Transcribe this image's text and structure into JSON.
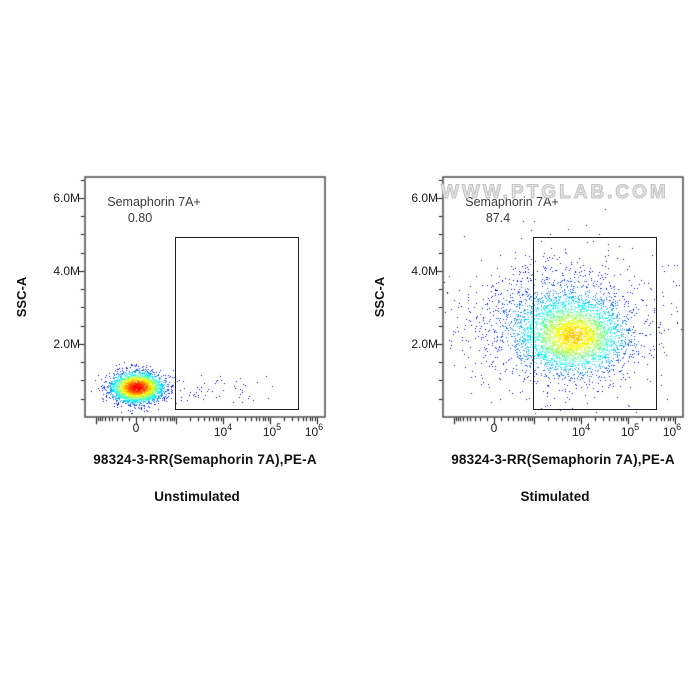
{
  "watermark": {
    "text": "WWW.PTGLAB.COM"
  },
  "style": {
    "density_colormap": {
      "positions": [
        0,
        0.125,
        0.375,
        0.625,
        0.875,
        1
      ],
      "colors": [
        "#00007f",
        "#0000ff",
        "#00ffff",
        "#ffff00",
        "#ff0000",
        "#7f0000"
      ]
    },
    "frame_color": "#3d3d3d",
    "tick_color": "#1a1a1a",
    "gate_color": "#1f1f1f"
  },
  "chart_data": [
    {
      "type": "scatter",
      "panel": "left",
      "title": "Unstimulated",
      "xlabel": "98324-3-RR(Semaphorin 7A),PE-A",
      "ylabel": "SSC-A",
      "x_scale": "biexponential",
      "y_scale": "linear",
      "x_labeled_values": [
        0,
        10000,
        100000,
        1000000
      ],
      "xtick_labels": [
        {
          "text": "0"
        },
        {
          "base": "10",
          "exp": "4"
        },
        {
          "base": "10",
          "exp": "5"
        },
        {
          "base": "10",
          "exp": "6"
        }
      ],
      "ylim": [
        0,
        6575000
      ],
      "ytick_values": [
        2000000,
        4000000,
        6000000
      ],
      "ytick_labels": [
        "2.0M",
        "4.0M",
        "6.0M"
      ],
      "gate": {
        "label": "Semaphorin 7A+",
        "value": "0.80",
        "x_range_approx": [
          1000,
          380000
        ],
        "y_range_approx": [
          250000,
          4930000
        ]
      },
      "color_cap": 0.88,
      "seed": 7,
      "populations": [
        {
          "n": 3000,
          "x_frac_mean": 0.215,
          "x_frac_sigma": 0.055,
          "y_mean_M": 0.82,
          "y_sigma_M": 0.21
        },
        {
          "n": 55,
          "x_frac_mean": 0.55,
          "x_frac_sigma": 0.12,
          "y_mean_M": 0.75,
          "y_sigma_M": 0.2
        }
      ]
    },
    {
      "type": "scatter",
      "panel": "right",
      "title": "Stimulated",
      "xlabel": "98324-3-RR(Semaphorin 7A),PE-A",
      "ylabel": "SSC-A",
      "x_scale": "biexponential",
      "y_scale": "linear",
      "x_labeled_values": [
        0,
        10000,
        100000,
        1000000
      ],
      "xtick_labels": [
        {
          "text": "0"
        },
        {
          "base": "10",
          "exp": "4"
        },
        {
          "base": "10",
          "exp": "5"
        },
        {
          "base": "10",
          "exp": "6"
        }
      ],
      "ylim": [
        0,
        6575000
      ],
      "ytick_values": [
        2000000,
        4000000,
        6000000
      ],
      "ytick_labels": [
        "2.0M",
        "4.0M",
        "6.0M"
      ],
      "gate": {
        "label": "Semaphorin 7A+",
        "value": "87.4",
        "x_range_approx": [
          1000,
          380000
        ],
        "y_range_approx": [
          250000,
          4930000
        ]
      },
      "color_cap": 0.68,
      "seed": 99,
      "populations": [
        {
          "n": 2600,
          "x_frac_mean": 0.55,
          "x_frac_sigma": 0.105,
          "y_mean_M": 2.2,
          "y_sigma_M": 0.5
        },
        {
          "n": 1500,
          "x_frac_mean": 0.47,
          "x_frac_sigma": 0.16,
          "y_mean_M": 2.55,
          "y_sigma_M": 0.75
        },
        {
          "n": 600,
          "x_frac_mean": 0.52,
          "x_frac_sigma": 0.24,
          "y_mean_M": 2.6,
          "y_sigma_M": 1.05
        }
      ]
    }
  ]
}
